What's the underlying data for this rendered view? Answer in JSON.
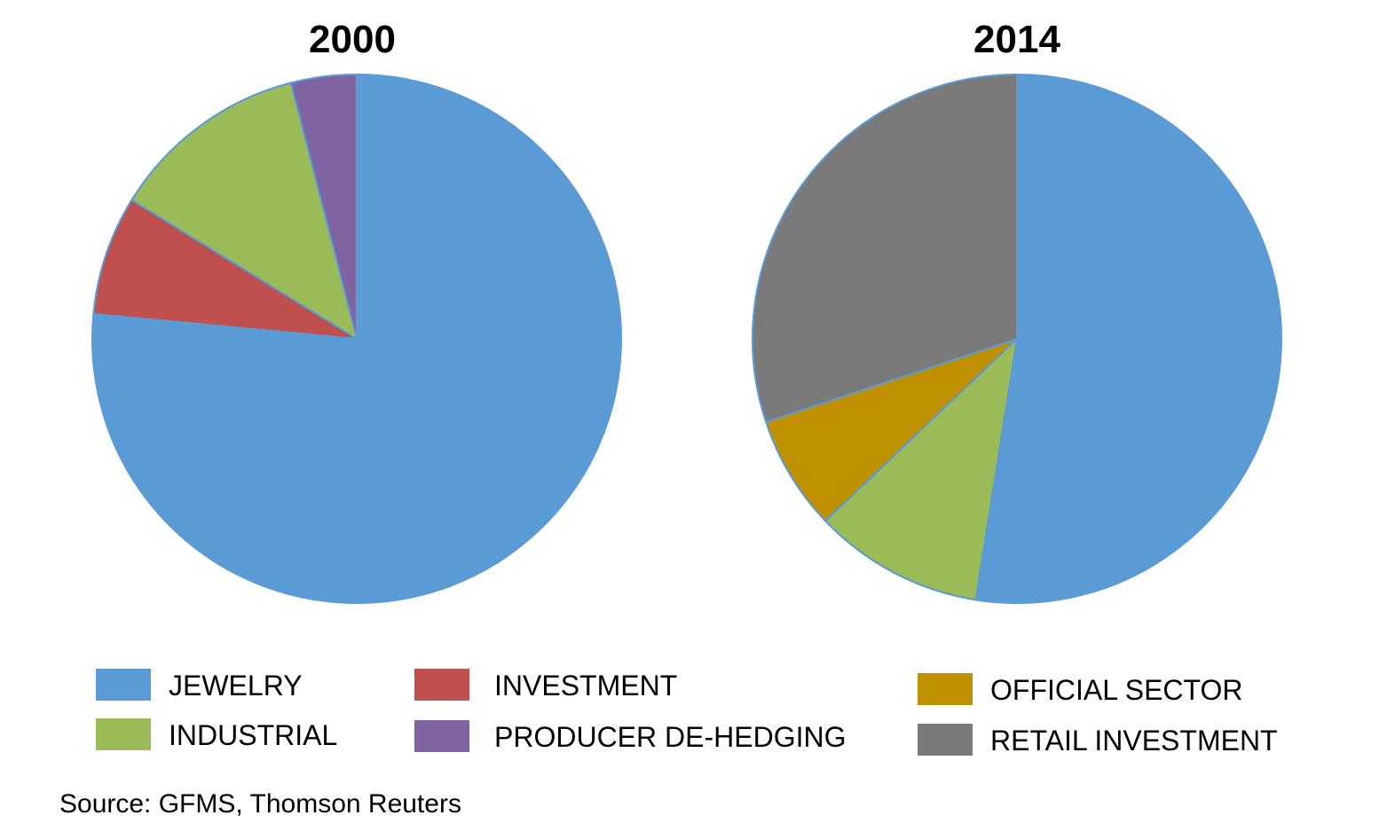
{
  "chart_data": [
    {
      "type": "pie",
      "title": "2000",
      "slices": [
        {
          "label": "JEWELRY",
          "value": 76.5,
          "color": "#5B9BD5"
        },
        {
          "label": "INVESTMENT",
          "value": 7.3,
          "color": "#C0504D"
        },
        {
          "label": "INDUSTRIAL",
          "value": 12.2,
          "color": "#9BBB59"
        },
        {
          "label": "PRODUCER DE-HEDGING",
          "value": 4.0,
          "color": "#8064A2"
        }
      ]
    },
    {
      "type": "pie",
      "title": "2014",
      "slices": [
        {
          "label": "JEWELRY",
          "value": 52.5,
          "color": "#5B9BD5"
        },
        {
          "label": "INDUSTRIAL",
          "value": 10.4,
          "color": "#9BBB59"
        },
        {
          "label": "OFFICIAL SECTOR",
          "value": 7.0,
          "color": "#BF9000"
        },
        {
          "label": "RETAIL INVESTMENT",
          "value": 30.1,
          "color": "#7A7A7A"
        }
      ]
    }
  ],
  "legend": [
    {
      "label": "JEWELRY",
      "color": "#5B9BD5"
    },
    {
      "label": "INVESTMENT",
      "color": "#C0504D"
    },
    {
      "label": "OFFICIAL SECTOR",
      "color": "#BF9000"
    },
    {
      "label": "INDUSTRIAL",
      "color": "#9BBB59"
    },
    {
      "label": "PRODUCER DE-HEDGING",
      "color": "#8064A2"
    },
    {
      "label": "RETAIL INVESTMENT",
      "color": "#7A7A7A"
    }
  ],
  "source": "Source:  GFMS,  Thomson Reuters"
}
